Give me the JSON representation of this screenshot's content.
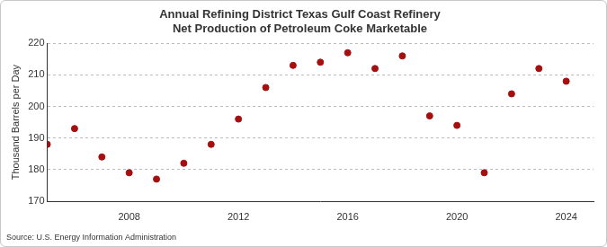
{
  "chart_data": {
    "type": "scatter",
    "title": "Annual Refining District Texas Gulf Coast Refinery Net Production of Petroleum Coke Marketable",
    "y_label": "Thousand Barrels per Day",
    "source": "Source: U.S. Energy Information Administration",
    "x": [
      2005,
      2006,
      2007,
      2008,
      2009,
      2010,
      2011,
      2012,
      2013,
      2014,
      2015,
      2016,
      2017,
      2018,
      2019,
      2020,
      2021,
      2022,
      2023,
      2024
    ],
    "values": [
      188,
      193,
      184,
      179,
      177,
      182,
      188,
      196,
      206,
      213,
      214,
      217,
      212,
      216,
      197,
      194,
      179,
      204,
      212,
      208
    ],
    "color": "#a50f0f",
    "marker": "circle",
    "xlim": [
      2005,
      2025
    ],
    "xticks": [
      2008,
      2012,
      2016,
      2020,
      2024
    ],
    "ylim": [
      170,
      220
    ],
    "yticks": [
      170,
      180,
      190,
      200,
      210,
      220
    ],
    "grid": true
  }
}
